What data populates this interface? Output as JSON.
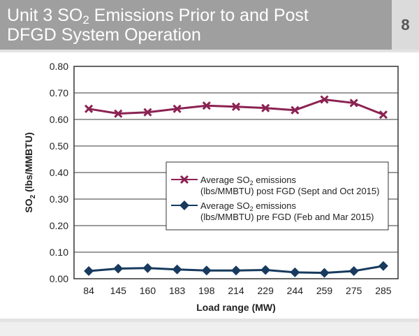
{
  "header": {
    "title_line1_pre": "Unit 3 SO",
    "title_line1_sub": "2",
    "title_line1_post": " Emissions Prior to and Post",
    "title_line2": "DFGD System Operation",
    "page_number": "8"
  },
  "chart_data": {
    "type": "line",
    "xlabel": "Load range (MW)",
    "ylabel_pre": "SO",
    "ylabel_sub": "2",
    "ylabel_post": " (lbs/MMBTU)",
    "categories": [
      "84",
      "145",
      "160",
      "183",
      "198",
      "214",
      "229",
      "244",
      "259",
      "275",
      "285"
    ],
    "ylim": [
      0,
      0.8
    ],
    "yticks": [
      "0.00",
      "0.10",
      "0.20",
      "0.30",
      "0.40",
      "0.50",
      "0.60",
      "0.70",
      "0.80"
    ],
    "grid": true,
    "legend_position": "center-right",
    "series": [
      {
        "legend_pre": "Average SO",
        "legend_sub": "2",
        "legend_post": " emissions",
        "legend_line2": "(lbs/MMBTU) post FGD (Sept and Oct 2015)",
        "marker": "x",
        "color": "#8b2252",
        "values": [
          0.64,
          0.622,
          0.627,
          0.64,
          0.652,
          0.648,
          0.643,
          0.635,
          0.675,
          0.662,
          0.618
        ]
      },
      {
        "legend_pre": "Average SO",
        "legend_sub": "2",
        "legend_post": " emissions",
        "legend_line2": "(lbs/MMBTU) pre FGD (Feb and Mar 2015)",
        "marker": "diamond",
        "color": "#173a5e",
        "values": [
          0.029,
          0.038,
          0.04,
          0.035,
          0.031,
          0.031,
          0.033,
          0.024,
          0.022,
          0.029,
          0.048
        ]
      }
    ]
  }
}
